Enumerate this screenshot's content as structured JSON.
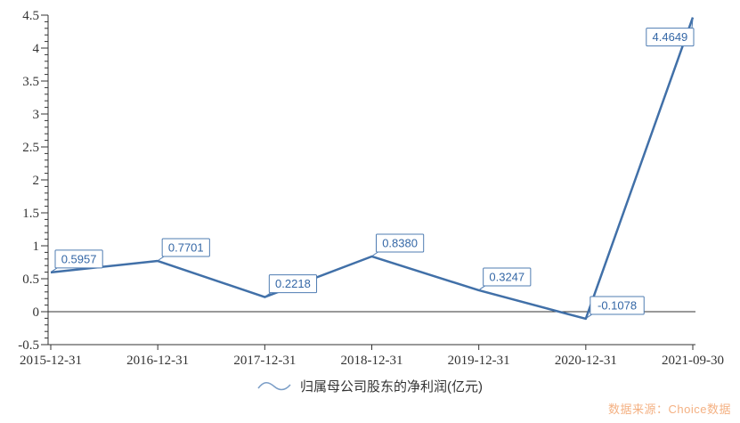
{
  "chart_data": {
    "type": "line",
    "title": "",
    "series": [
      {
        "name": "归属母公司股东的净利润(亿元)",
        "values": [
          0.5957,
          0.7701,
          0.2218,
          0.838,
          0.3247,
          -0.1078,
          4.4649
        ],
        "point_labels": [
          "0.5957",
          "0.7701",
          "0.2218",
          "0.8380",
          "0.3247",
          "-0.1078",
          "4.4649"
        ]
      }
    ],
    "categories": [
      "2015-12-31",
      "2016-12-31",
      "2017-12-31",
      "2018-12-31",
      "2019-12-31",
      "2020-12-31",
      "2021-09-30"
    ],
    "xlabel": "",
    "ylabel": "",
    "ylim": [
      -0.5,
      4.5
    ],
    "y_tick_values": [
      4.5,
      4,
      3.5,
      3,
      2.5,
      2,
      1.5,
      1,
      0.5,
      0,
      -0.5
    ],
    "y_tick_labels": [
      "4.5",
      "4",
      "3.5",
      "3",
      "2.5",
      "2",
      "1.5",
      "1",
      "0.5",
      "0",
      "-0.5"
    ],
    "y_minor_tick_step": 0.1,
    "zero_line": true,
    "grid": false,
    "legend_position": "bottom",
    "colors": {
      "line": "#4170a8",
      "point_label_text": "#3467a6",
      "point_label_border": "#4f7cb2",
      "point_label_fill": "#ffffff",
      "axis": "#333333",
      "zero_line": "#333333",
      "tick_label": "#333333",
      "legend_marker": "#7b9ec7",
      "legend_text": "#333333",
      "watermark": "#f4b183"
    }
  },
  "legend": {
    "label": "归属母公司股东的净利润(亿元)"
  },
  "watermark": {
    "text": "数据来源：Choice数据"
  }
}
